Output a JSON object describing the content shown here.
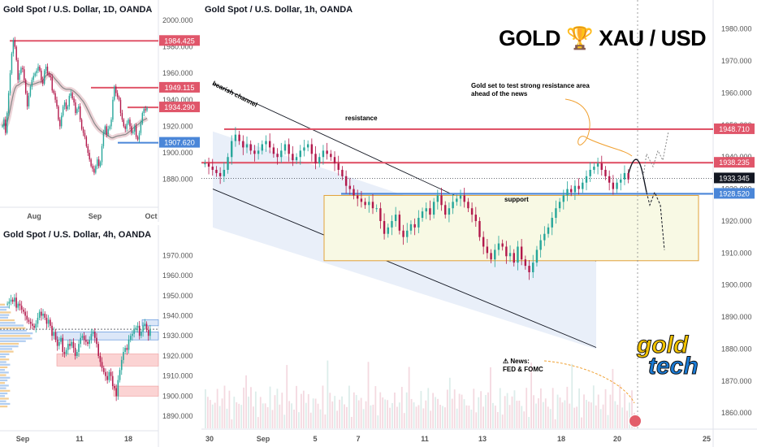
{
  "heading": {
    "left": "GOLD",
    "icon": "trophy-icon",
    "right": "XAU / USD"
  },
  "logo": {
    "word1": "gold",
    "word2": "tech"
  },
  "colors": {
    "resistance": "#e0566a",
    "support": "#4a86d8",
    "up": "#26a69a",
    "down": "#b2184b",
    "channel": "#dfe8f7",
    "zone": "#f8f9e4",
    "zone_border": "#e1a23a"
  },
  "chart_data": [
    {
      "type": "candlestick",
      "title": "Gold Spot / U.S. Dollar, 1D, OANDA",
      "y_ticks": [
        2000,
        1980,
        1960,
        1940,
        1920,
        1900,
        1880
      ],
      "x_ticks": [
        "Aug",
        "Sep",
        "Oct"
      ],
      "ylim": [
        1862,
        2003
      ],
      "price_labels": [
        {
          "value": "1984.425",
          "color": "#e0566a"
        },
        {
          "value": "1949.115",
          "color": "#e0566a"
        },
        {
          "value": "1934.290",
          "color": "#e0566a"
        },
        {
          "value": "1907.620",
          "color": "#4a86d8"
        }
      ],
      "levels": [
        1984.425,
        1949.115,
        1934.29,
        1907.62
      ],
      "closes": [
        1920,
        1925,
        1915,
        1930,
        1945,
        1960,
        1975,
        1985,
        1980,
        1970,
        1955,
        1960,
        1964,
        1963,
        1955,
        1945,
        1935,
        1943,
        1950,
        1955,
        1958,
        1960,
        1962,
        1965,
        1962,
        1955,
        1952,
        1962,
        1965,
        1960,
        1958,
        1957,
        1947,
        1945,
        1940,
        1935,
        1925,
        1920,
        1928,
        1935,
        1938,
        1933,
        1935,
        1943,
        1945,
        1941,
        1938,
        1930,
        1933,
        1935,
        1925,
        1918,
        1915,
        1912,
        1905,
        1900,
        1895,
        1890,
        1888,
        1885,
        1890,
        1895,
        1890,
        1893,
        1905,
        1915,
        1920,
        1914,
        1918,
        1920,
        1925,
        1940,
        1950,
        1945,
        1942,
        1940,
        1930,
        1925,
        1920,
        1918,
        1922,
        1925,
        1920,
        1915,
        1916,
        1920,
        1912,
        1910,
        1915,
        1922,
        1930,
        1933,
        1932,
        1934
      ]
    },
    {
      "type": "candlestick",
      "title": "Gold Spot / U.S. Dollar, 4h, OANDA",
      "y_ticks": [
        1970,
        1960,
        1950,
        1940,
        1930,
        1920,
        1910,
        1900,
        1890
      ],
      "x_ticks": [
        "Sep",
        "11",
        "18"
      ],
      "ylim": [
        1884,
        1977
      ],
      "closes": [
        1946,
        1947,
        1948,
        1947,
        1949,
        1944,
        1946,
        1945,
        1943,
        1942,
        1940,
        1938,
        1937,
        1936,
        1935,
        1934,
        1936,
        1939,
        1942,
        1940,
        1941,
        1939,
        1936,
        1938,
        1935,
        1930,
        1932,
        1928,
        1925,
        1927,
        1929,
        1922,
        1921,
        1923,
        1926,
        1925,
        1927,
        1924,
        1920,
        1922,
        1926,
        1929,
        1930,
        1928,
        1927,
        1926,
        1928,
        1931,
        1932,
        1929,
        1926,
        1920,
        1917,
        1914,
        1912,
        1910,
        1908,
        1912,
        1910,
        1905,
        1904,
        1900,
        1908,
        1913,
        1918,
        1922,
        1924,
        1923,
        1928,
        1930,
        1931,
        1933,
        1934,
        1935,
        1930,
        1932,
        1935,
        1936,
        1933,
        1930,
        1933
      ],
      "boxes": [
        {
          "y1": 1938,
          "y2": 1935,
          "kind": "resistance"
        },
        {
          "y1": 1932,
          "y2": 1928,
          "kind": "support"
        },
        {
          "y1": 1921,
          "y2": 1915,
          "kind": "demand"
        },
        {
          "y1": 1905,
          "y2": 1900,
          "kind": "demand"
        }
      ]
    },
    {
      "type": "candlestick",
      "title": "Gold Spot / U.S. Dollar, 1h, OANDA",
      "y_ticks": [
        1980,
        1970,
        1960,
        1950,
        1940,
        1930,
        1920,
        1910,
        1900,
        1890,
        1880,
        1870,
        1860
      ],
      "x_ticks": [
        "30",
        "Sep",
        "5",
        "7",
        "11",
        "13",
        "18",
        "20",
        "25"
      ],
      "ylim": [
        1857,
        1984
      ],
      "price_labels": [
        {
          "value": "1948.710",
          "color": "#e0566a"
        },
        {
          "value": "1938.235",
          "color": "#e0566a"
        },
        {
          "value": "1933.345",
          "color": "#131722"
        },
        {
          "value": "1928.520",
          "color": "#4a86d8"
        }
      ],
      "levels": {
        "resistance_upper": 1948.71,
        "resistance_lower": 1938.235,
        "current": 1933.345,
        "support": 1928.52
      },
      "annotations": {
        "channel": "bearish channel",
        "resistance": "resistance",
        "support": "support",
        "note_line1": "Gold set to test strong resistance area",
        "note_line2": "ahead of the news",
        "news_line1": "⚠ News:",
        "news_line2": "FED & FOMC"
      },
      "closes": [
        1938,
        1937,
        1936,
        1935,
        1934,
        1936,
        1940,
        1945,
        1947,
        1945,
        1943,
        1944,
        1942,
        1941,
        1942,
        1944,
        1945,
        1943,
        1941,
        1940,
        1942,
        1944,
        1941,
        1939,
        1940,
        1942,
        1943,
        1944,
        1941,
        1938,
        1940,
        1942,
        1941,
        1940,
        1938,
        1936,
        1934,
        1931,
        1930,
        1928,
        1927,
        1926,
        1925,
        1926,
        1924,
        1924,
        1920,
        1916,
        1918,
        1920,
        1922,
        1917,
        1915,
        1917,
        1919,
        1918,
        1921,
        1923,
        1924,
        1922,
        1926,
        1928,
        1925,
        1922,
        1924,
        1926,
        1927,
        1928,
        1926,
        1924,
        1922,
        1920,
        1915,
        1912,
        1910,
        1908,
        1911,
        1913,
        1912,
        1909,
        1910,
        1907,
        1912,
        1908,
        1906,
        1904,
        1907,
        1911,
        1914,
        1916,
        1918,
        1921,
        1924,
        1926,
        1928,
        1930,
        1929,
        1931,
        1930,
        1932,
        1934,
        1936,
        1937,
        1938,
        1936,
        1934,
        1932,
        1930,
        1932,
        1933,
        1935,
        1933
      ]
    }
  ]
}
